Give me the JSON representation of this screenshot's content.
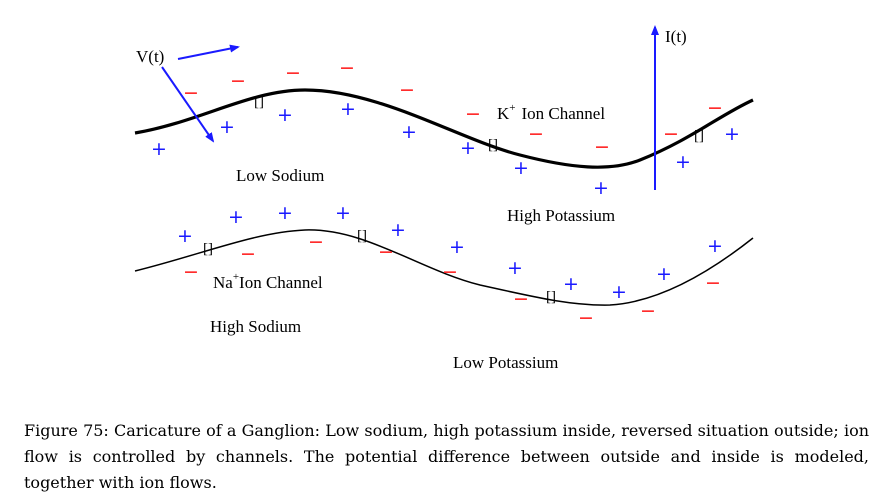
{
  "labels": {
    "voltage": "V(t)",
    "current": "I(t)",
    "k_channel_sup": "+",
    "k_channel_prefix": "K",
    "k_channel_rest": "Ion Channel",
    "na_channel_prefix": "Na",
    "na_channel_sup": "+",
    "na_channel_rest": "Ion Channel",
    "low_sodium": "Low Sodium",
    "high_potassium": "High Potassium",
    "high_sodium": "High Sodium",
    "low_potassium": "Low Potassium",
    "channel_glyph": "[]"
  },
  "symbols": {
    "plus": "+",
    "minus": "−"
  },
  "colors": {
    "plus": "#1a1aff",
    "minus": "#ff2020",
    "arrow": "#1a1aff",
    "membrane": "#000000"
  },
  "caption": "Figure 75: Caricature of a Ganglion: Low sodium, high potassium inside, reversed situation outside; ion flow is controlled by channels. The potential difference between outside and inside is modeled, together with ion flows."
}
